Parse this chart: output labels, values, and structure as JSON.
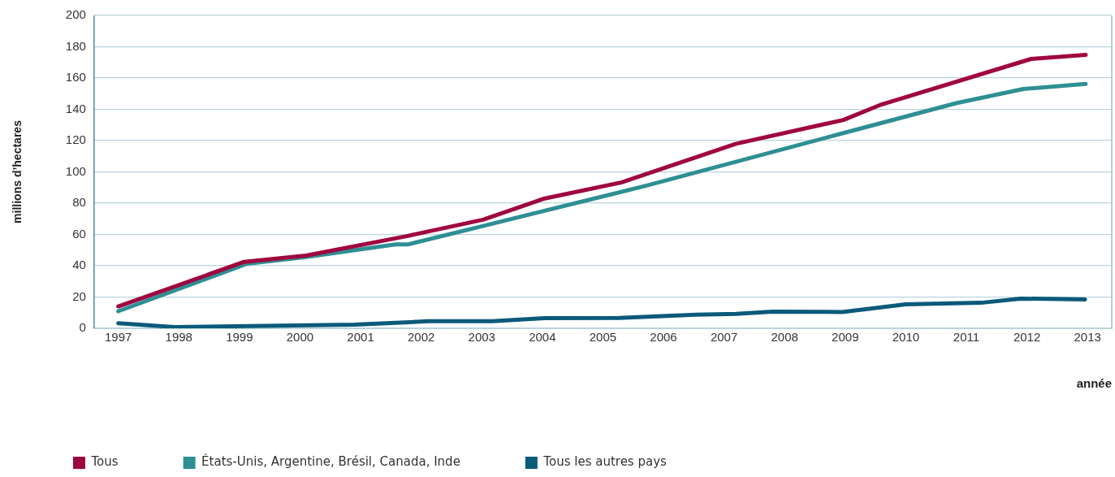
{
  "chart_data": {
    "type": "line",
    "xlabel": "année",
    "ylabel": "millions d’hectares",
    "xlim": [
      1996.6,
      2013.4
    ],
    "ylim": [
      0,
      200
    ],
    "xticks": [
      1997,
      1998,
      1999,
      2000,
      2001,
      2002,
      2003,
      2004,
      2005,
      2006,
      2007,
      2008,
      2009,
      2010,
      2011,
      2012,
      2013
    ],
    "yticks": [
      0,
      20,
      40,
      60,
      80,
      100,
      120,
      140,
      160,
      180,
      200
    ],
    "grid": "y",
    "legend": "bottom left",
    "marker": "none",
    "line_style": "solid",
    "series": [
      {
        "name": "Tous",
        "color": "#a0063f",
        "x": [
          1997,
          1999.08,
          2000.1,
          2001.76,
          2003.02,
          2004.04,
          2005.3,
          2007.2,
          2008.97,
          2009.6,
          2012.07,
          2012.97
        ],
        "values": [
          14,
          42.5,
          46.5,
          58.9,
          69.4,
          83,
          93.2,
          118,
          133.2,
          143.1,
          172.2,
          174.8
        ]
      },
      {
        "name": "États-Unis, Argentine, Brésil, Canada, Inde",
        "color": "#2e8f94",
        "x": [
          1997,
          1999.13,
          2000.1,
          2001.58,
          2001.78,
          2003.02,
          2005.76,
          2008.97,
          2010.83,
          2011.94,
          2012.97
        ],
        "values": [
          10.9,
          41.3,
          45.6,
          53.6,
          53.6,
          65.4,
          91.6,
          124.8,
          143.9,
          153,
          156.2
        ]
      },
      {
        "name": "Tous les autres pays",
        "color": "#0b5a7a",
        "x": [
          1997,
          1997.93,
          2000.9,
          2002.12,
          2003.18,
          2004.04,
          2005.27,
          2006.54,
          2007.2,
          2007.8,
          2008.95,
          2010,
          2011.24,
          2011.9,
          2012.96
        ],
        "values": [
          3.2,
          0.8,
          2.3,
          4.5,
          4.5,
          6.5,
          6.6,
          8.7,
          9.2,
          10.7,
          10.4,
          15.3,
          16.3,
          19,
          18.4
        ]
      }
    ]
  }
}
